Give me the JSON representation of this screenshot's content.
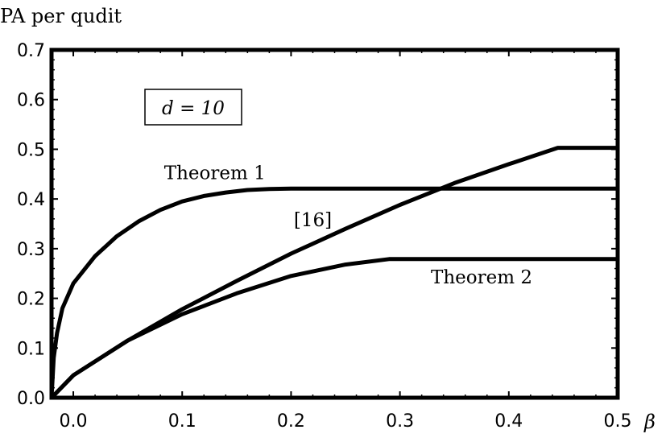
{
  "chart_data": {
    "type": "line",
    "title": "",
    "ylabel": "PA per qudit",
    "xlabel": "β",
    "xlim": [
      -0.02,
      0.5
    ],
    "ylim": [
      0,
      0.7
    ],
    "x_ticks": [
      "0.0",
      "0.1",
      "0.2",
      "0.3",
      "0.4",
      "0.5"
    ],
    "x_tick_values": [
      0,
      0.1,
      0.2,
      0.3,
      0.4,
      0.5
    ],
    "y_ticks": [
      "0.0",
      "0.1",
      "0.2",
      "0.3",
      "0.4",
      "0.5",
      "0.6",
      "0.7"
    ],
    "y_tick_values": [
      0,
      0.1,
      0.2,
      0.3,
      0.4,
      0.5,
      0.6,
      0.7
    ],
    "grid": false,
    "parameter_box": "d = 10",
    "series": [
      {
        "name": "Theorem 1",
        "x": [
          -0.02,
          -0.018,
          -0.015,
          -0.01,
          0.0,
          0.02,
          0.04,
          0.06,
          0.08,
          0.1,
          0.12,
          0.14,
          0.16,
          0.18,
          0.2,
          0.25,
          0.3,
          0.35,
          0.4,
          0.45,
          0.5
        ],
        "y": [
          0.0,
          0.08,
          0.13,
          0.18,
          0.23,
          0.285,
          0.325,
          0.355,
          0.378,
          0.395,
          0.406,
          0.413,
          0.418,
          0.42,
          0.421,
          0.421,
          0.421,
          0.421,
          0.421,
          0.421,
          0.421
        ]
      },
      {
        "name": "[16]",
        "x": [
          -0.02,
          0.0,
          0.05,
          0.1,
          0.15,
          0.2,
          0.25,
          0.3,
          0.35,
          0.4,
          0.445,
          0.45,
          0.5
        ],
        "y": [
          0.0,
          0.045,
          0.115,
          0.178,
          0.235,
          0.29,
          0.34,
          0.388,
          0.432,
          0.47,
          0.503,
          0.503,
          0.503
        ]
      },
      {
        "name": "Theorem 2",
        "x": [
          -0.02,
          0.0,
          0.05,
          0.1,
          0.15,
          0.2,
          0.25,
          0.29,
          0.3,
          0.35,
          0.4,
          0.45,
          0.5
        ],
        "y": [
          0.0,
          0.045,
          0.115,
          0.168,
          0.21,
          0.245,
          0.268,
          0.279,
          0.279,
          0.279,
          0.279,
          0.279,
          0.279
        ]
      }
    ],
    "annotations": [
      {
        "text": "Theorem 1",
        "x": 0.13,
        "y": 0.44
      },
      {
        "text": "[16]",
        "x": 0.22,
        "y": 0.345
      },
      {
        "text": "Theorem 2",
        "x": 0.375,
        "y": 0.23
      }
    ]
  }
}
